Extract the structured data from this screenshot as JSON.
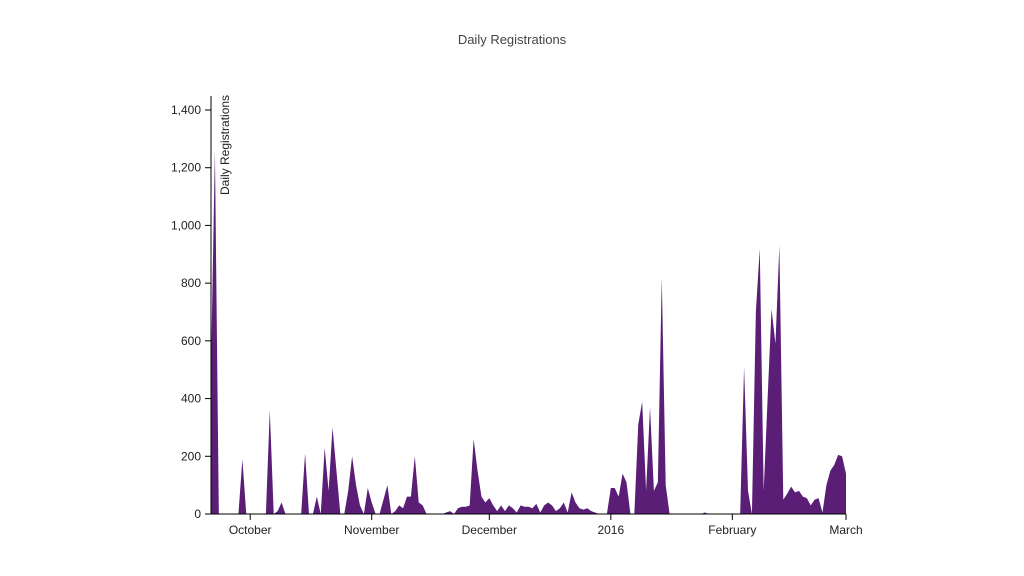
{
  "chart_data": {
    "type": "area",
    "title": "Daily Registrations",
    "y_label": "Daily Registrations",
    "color": "#5b1e77",
    "xlim": [
      "2015-09-21",
      "2016-03-01"
    ],
    "xticks": [
      {
        "value": "2015-10-01",
        "label": "October"
      },
      {
        "value": "2015-11-01",
        "label": "November"
      },
      {
        "value": "2015-12-01",
        "label": "December"
      },
      {
        "value": "2016-01-01",
        "label": "2016"
      },
      {
        "value": "2016-02-01",
        "label": "February"
      },
      {
        "value": "2016-03-01",
        "label": "March"
      }
    ],
    "ylim": [
      0,
      1400
    ],
    "yticks": [
      0,
      200,
      400,
      600,
      800,
      {
        "value": 1000,
        "label": "1,000"
      },
      {
        "value": 1200,
        "label": "1,200"
      },
      {
        "value": 1400,
        "label": "1,400"
      }
    ],
    "x": [
      "2015-09-21",
      "2015-09-22",
      "2015-09-23",
      "2015-09-24",
      "2015-09-25",
      "2015-09-26",
      "2015-09-27",
      "2015-09-28",
      "2015-09-29",
      "2015-09-30",
      "2015-10-01",
      "2015-10-02",
      "2015-10-03",
      "2015-10-04",
      "2015-10-05",
      "2015-10-06",
      "2015-10-07",
      "2015-10-08",
      "2015-10-09",
      "2015-10-10",
      "2015-10-11",
      "2015-10-12",
      "2015-10-13",
      "2015-10-14",
      "2015-10-15",
      "2015-10-16",
      "2015-10-17",
      "2015-10-18",
      "2015-10-19",
      "2015-10-20",
      "2015-10-21",
      "2015-10-22",
      "2015-10-23",
      "2015-10-24",
      "2015-10-25",
      "2015-10-26",
      "2015-10-27",
      "2015-10-28",
      "2015-10-29",
      "2015-10-30",
      "2015-10-31",
      "2015-11-01",
      "2015-11-02",
      "2015-11-03",
      "2015-11-04",
      "2015-11-05",
      "2015-11-06",
      "2015-11-07",
      "2015-11-08",
      "2015-11-09",
      "2015-11-10",
      "2015-11-11",
      "2015-11-12",
      "2015-11-13",
      "2015-11-14",
      "2015-11-15",
      "2015-11-16",
      "2015-11-17",
      "2015-11-18",
      "2015-11-19",
      "2015-11-20",
      "2015-11-21",
      "2015-11-22",
      "2015-11-23",
      "2015-11-24",
      "2015-11-25",
      "2015-11-26",
      "2015-11-27",
      "2015-11-28",
      "2015-11-29",
      "2015-11-30",
      "2015-12-01",
      "2015-12-02",
      "2015-12-03",
      "2015-12-04",
      "2015-12-05",
      "2015-12-06",
      "2015-12-07",
      "2015-12-08",
      "2015-12-09",
      "2015-12-10",
      "2015-12-11",
      "2015-12-12",
      "2015-12-13",
      "2015-12-14",
      "2015-12-15",
      "2015-12-16",
      "2015-12-17",
      "2015-12-18",
      "2015-12-19",
      "2015-12-20",
      "2015-12-21",
      "2015-12-22",
      "2015-12-23",
      "2015-12-24",
      "2015-12-25",
      "2015-12-26",
      "2015-12-27",
      "2015-12-28",
      "2015-12-29",
      "2015-12-30",
      "2015-12-31",
      "2016-01-01",
      "2016-01-02",
      "2016-01-03",
      "2016-01-04",
      "2016-01-05",
      "2016-01-06",
      "2016-01-07",
      "2016-01-08",
      "2016-01-09",
      "2016-01-10",
      "2016-01-11",
      "2016-01-12",
      "2016-01-13",
      "2016-01-14",
      "2016-01-15",
      "2016-01-16",
      "2016-01-17",
      "2016-01-18",
      "2016-01-19",
      "2016-01-20",
      "2016-01-21",
      "2016-01-22",
      "2016-01-23",
      "2016-01-24",
      "2016-01-25",
      "2016-01-26",
      "2016-01-27",
      "2016-01-28",
      "2016-01-29",
      "2016-01-30",
      "2016-01-31",
      "2016-02-01",
      "2016-02-02",
      "2016-02-03",
      "2016-02-04",
      "2016-02-05",
      "2016-02-06",
      "2016-02-07",
      "2016-02-08",
      "2016-02-09",
      "2016-02-10",
      "2016-02-11",
      "2016-02-12",
      "2016-02-13",
      "2016-02-14",
      "2016-02-15",
      "2016-02-16",
      "2016-02-17",
      "2016-02-18",
      "2016-02-19",
      "2016-02-20",
      "2016-02-21",
      "2016-02-22",
      "2016-02-23",
      "2016-02-24",
      "2016-02-25",
      "2016-02-26",
      "2016-02-27",
      "2016-02-28",
      "2016-02-29",
      "2016-03-01"
    ],
    "values": [
      500,
      1260,
      0,
      0,
      0,
      0,
      0,
      0,
      190,
      0,
      0,
      0,
      0,
      0,
      0,
      360,
      0,
      10,
      40,
      0,
      0,
      0,
      0,
      0,
      210,
      0,
      0,
      60,
      0,
      230,
      80,
      300,
      150,
      0,
      0,
      80,
      200,
      100,
      30,
      0,
      90,
      40,
      0,
      0,
      50,
      100,
      0,
      10,
      30,
      20,
      60,
      60,
      200,
      40,
      30,
      0,
      0,
      0,
      0,
      0,
      5,
      10,
      0,
      20,
      25,
      25,
      30,
      260,
      150,
      60,
      40,
      55,
      30,
      10,
      30,
      10,
      30,
      20,
      5,
      30,
      25,
      25,
      20,
      35,
      5,
      30,
      40,
      30,
      10,
      20,
      40,
      5,
      75,
      40,
      20,
      15,
      20,
      10,
      5,
      0,
      0,
      0,
      90,
      90,
      60,
      140,
      110,
      0,
      0,
      310,
      390,
      80,
      370,
      80,
      110,
      820,
      100,
      0,
      0,
      0,
      0,
      0,
      0,
      0,
      0,
      0,
      5,
      0,
      0,
      0,
      0,
      0,
      0,
      0,
      0,
      0,
      510,
      80,
      0,
      700,
      920,
      80,
      400,
      710,
      590,
      930,
      50,
      70,
      95,
      75,
      80,
      60,
      55,
      30,
      50,
      55,
      5,
      100,
      150,
      170,
      205,
      200,
      140
    ]
  }
}
